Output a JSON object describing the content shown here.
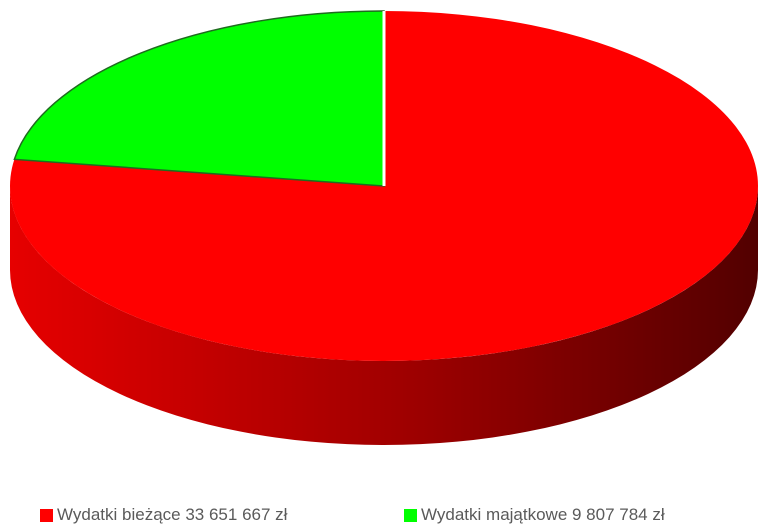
{
  "chart_data": {
    "type": "pie",
    "style": "3d",
    "title": "",
    "legend_position": "bottom",
    "slices": [
      {
        "label": "Wydatki bieżące 33 651 667 zł",
        "value": 33651667,
        "color": "#ff0000"
      },
      {
        "label": "Wydatki majątkowe 9 807 784 zł",
        "value": 9807784,
        "color": "#00ff00"
      }
    ]
  }
}
